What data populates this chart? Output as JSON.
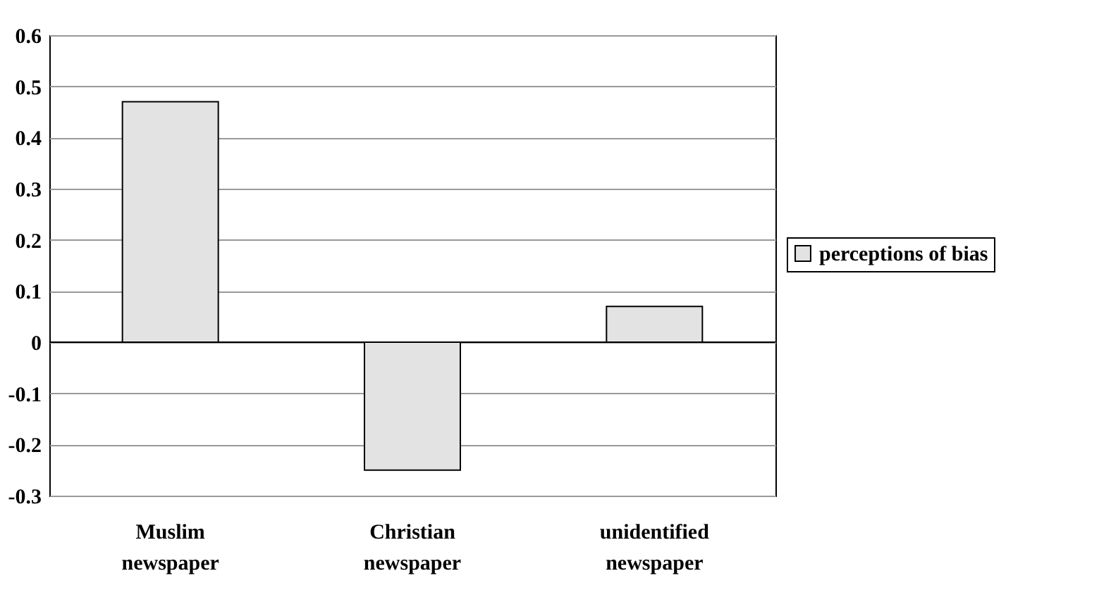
{
  "chart_data": {
    "type": "bar",
    "categories": [
      "Muslim newspaper",
      "Christian newspaper",
      "unidentified newspaper"
    ],
    "series": [
      {
        "name": "perceptions of bias",
        "color": "#e3e3e3",
        "values": [
          0.47,
          -0.25,
          0.07
        ]
      }
    ],
    "ylim": [
      -0.3,
      0.6
    ],
    "yticks": [
      -0.3,
      -0.2,
      -0.1,
      0,
      0.1,
      0.2,
      0.3,
      0.4,
      0.5,
      0.6
    ],
    "grid": "y",
    "legend": "right"
  }
}
